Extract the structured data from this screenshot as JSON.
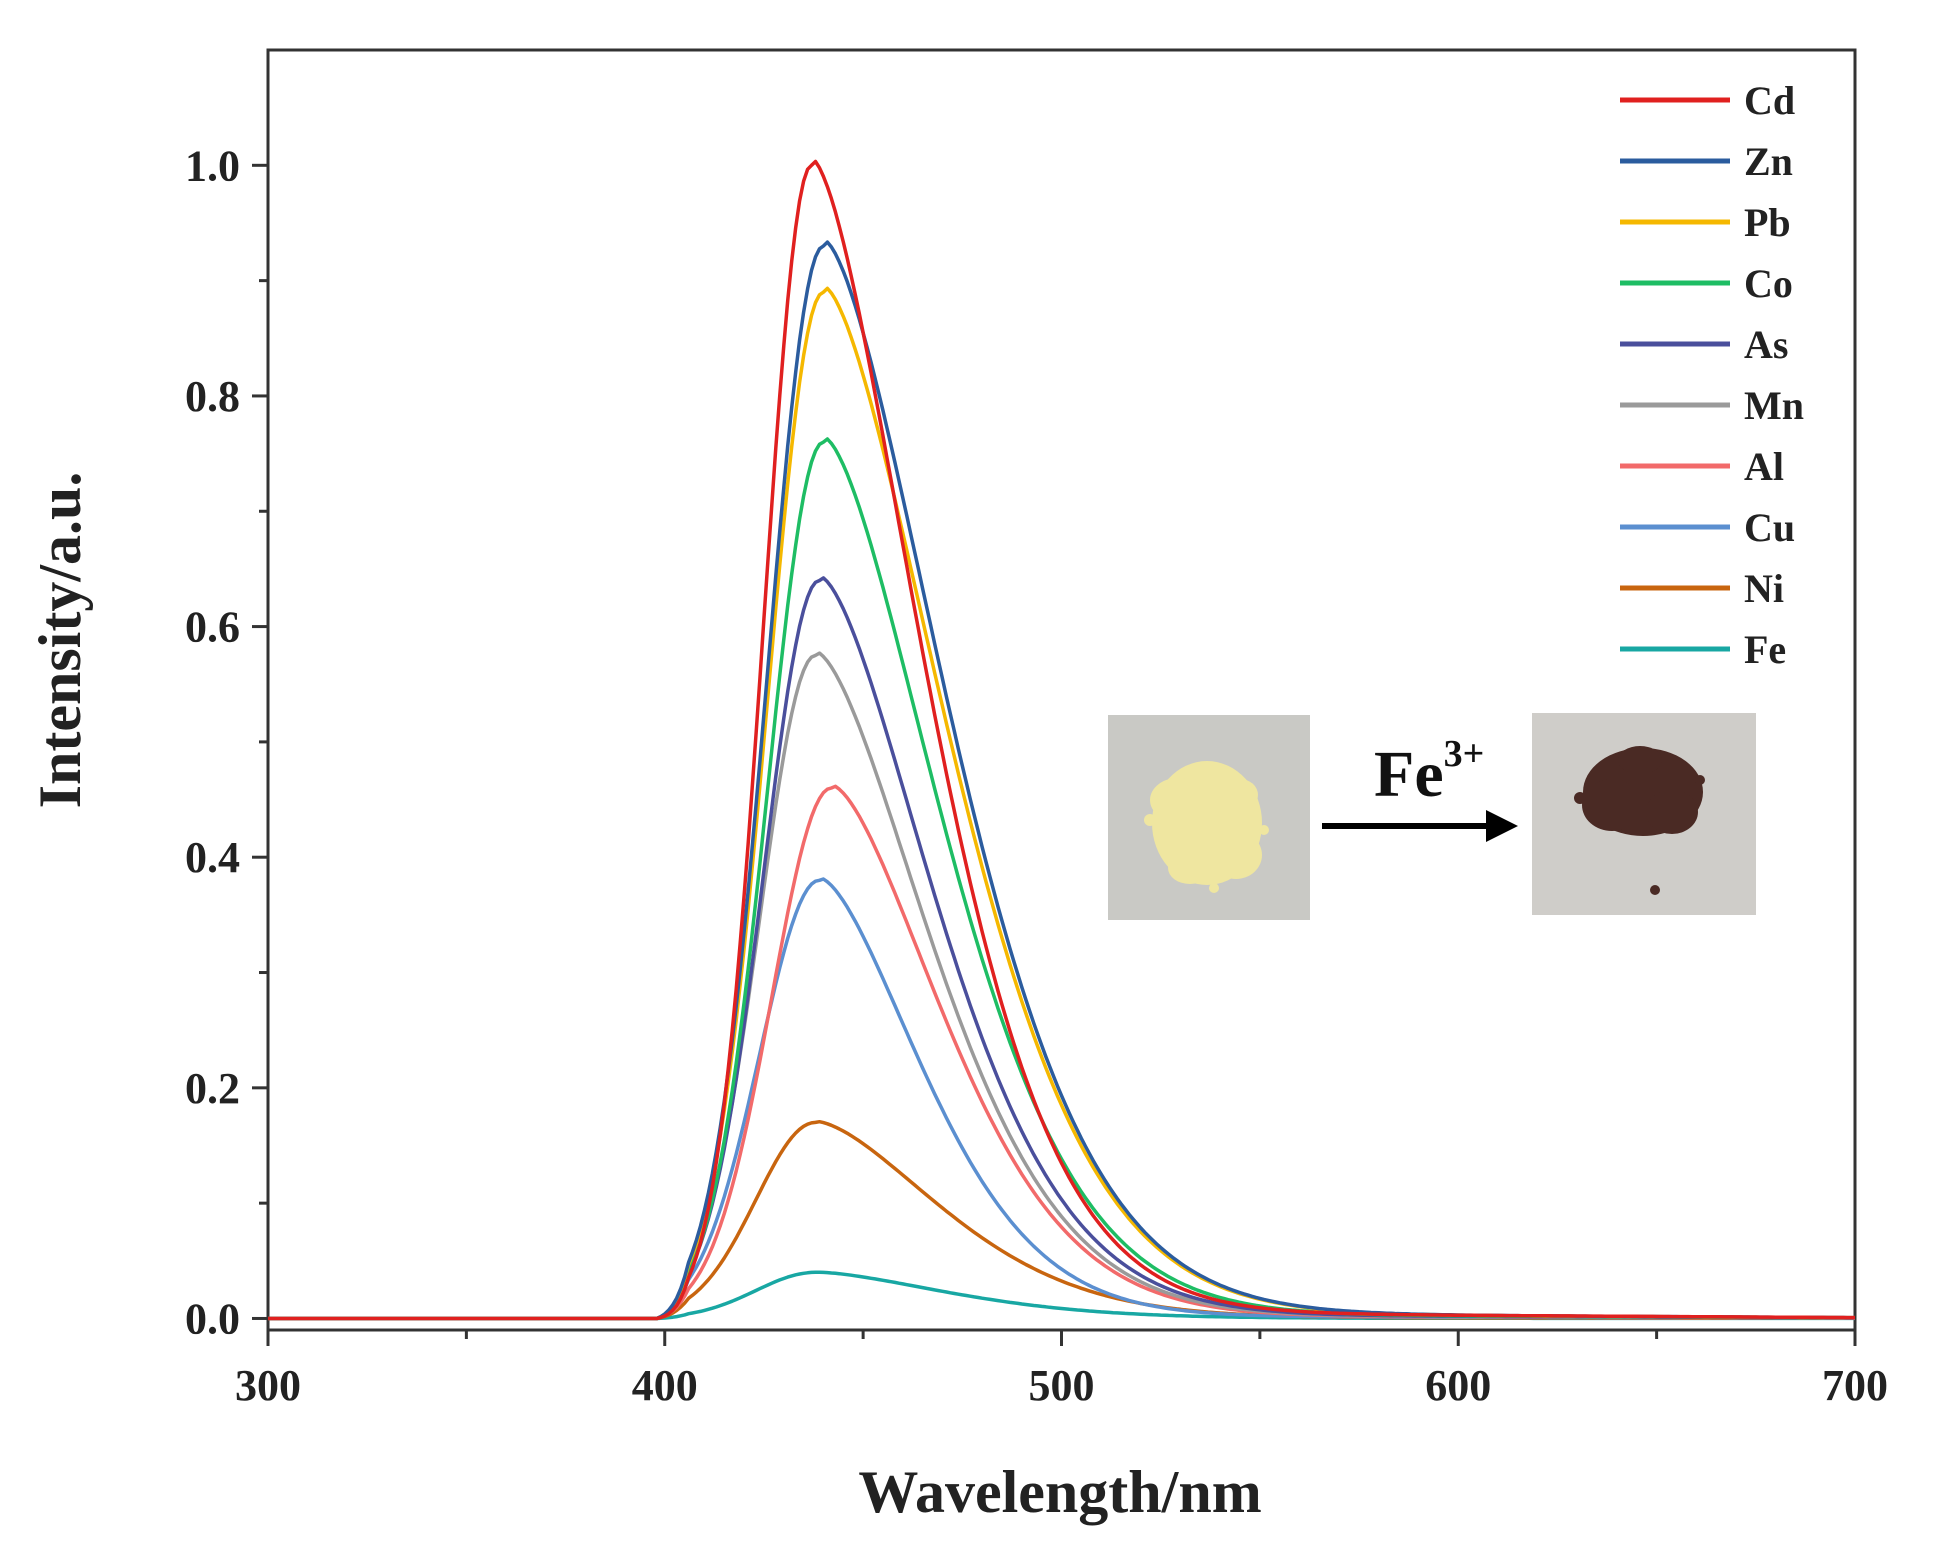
{
  "chart_data": {
    "type": "line",
    "title": "",
    "xlabel": "Wavelength/nm",
    "ylabel": "Intensity/a.u.",
    "xlim": [
      300,
      700
    ],
    "ylim": [
      -0.01,
      1.1
    ],
    "x_ticks": [
      "300",
      "400",
      "500",
      "600",
      "700"
    ],
    "y_ticks": [
      "0.0",
      "0.2",
      "0.4",
      "0.6",
      "0.8",
      "1.0"
    ],
    "grid": false,
    "legend_position": "top-right",
    "series": [
      {
        "name": "Cd",
        "color": "#e0201f",
        "peak_x": 437,
        "peak": 1.0,
        "width_left": 12,
        "width_right": 36
      },
      {
        "name": "Zn",
        "color": "#2b5c9e",
        "peak_x": 440,
        "peak": 0.93,
        "width_left": 14,
        "width_right": 40
      },
      {
        "name": "Pb",
        "color": "#f5b800",
        "peak_x": 440,
        "peak": 0.89,
        "width_left": 14,
        "width_right": 40
      },
      {
        "name": "Co",
        "color": "#1ebd64",
        "peak_x": 440,
        "peak": 0.76,
        "width_left": 14,
        "width_right": 38
      },
      {
        "name": "As",
        "color": "#4a4f9c",
        "peak_x": 439,
        "peak": 0.64,
        "width_left": 14,
        "width_right": 37
      },
      {
        "name": "Mn",
        "color": "#9a9a9a",
        "peak_x": 438,
        "peak": 0.575,
        "width_left": 14,
        "width_right": 37
      },
      {
        "name": "Al",
        "color": "#f26a6a",
        "peak_x": 442,
        "peak": 0.46,
        "width_left": 15,
        "width_right": 36
      },
      {
        "name": "Cu",
        "color": "#5b8fd0",
        "peak_x": 439,
        "peak": 0.38,
        "width_left": 15,
        "width_right": 33
      },
      {
        "name": "Ni",
        "color": "#c8650f",
        "peak_x": 438,
        "peak": 0.17,
        "width_left": 15,
        "width_right": 40
      },
      {
        "name": "Fe",
        "color": "#18a7a3",
        "peak_x": 438,
        "peak": 0.04,
        "width_left": 15,
        "width_right": 42
      }
    ],
    "annotations": {
      "arrow_label_base": "Fe",
      "arrow_label_sup": "3+"
    }
  },
  "inset": {
    "before_powder_color": "#efe6a0",
    "after_powder_color": "#4a2a24",
    "card_color": "#c9c9c5"
  }
}
